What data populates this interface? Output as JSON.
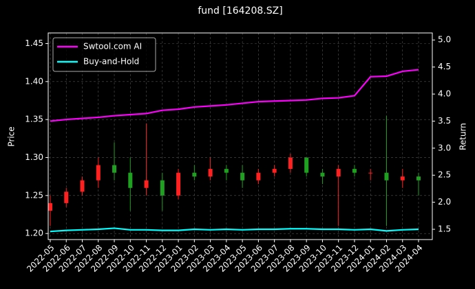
{
  "chart_data": {
    "type": "candlestick",
    "title": "fund [164208.SZ]",
    "ylabel": "Price",
    "y2label": "Return",
    "x": [
      "2022-05",
      "2022-06",
      "2022-07",
      "2022-08",
      "2022-09",
      "2022-10",
      "2022-11",
      "2022-12",
      "2023-01",
      "2023-02",
      "2023-03",
      "2023-04",
      "2023-05",
      "2023-06",
      "2023-07",
      "2023-08",
      "2023-09",
      "2023-10",
      "2023-11",
      "2023-12",
      "2024-01",
      "2024-02",
      "2024-03",
      "2024-04"
    ],
    "open": [
      1.23,
      1.24,
      1.255,
      1.27,
      1.29,
      1.28,
      1.26,
      1.27,
      1.25,
      1.28,
      1.275,
      1.285,
      1.28,
      1.27,
      1.28,
      1.285,
      1.3,
      1.28,
      1.275,
      1.285,
      1.28,
      1.28,
      1.27,
      1.275
    ],
    "high": [
      1.25,
      1.26,
      1.275,
      1.3,
      1.32,
      1.3,
      1.345,
      1.28,
      1.285,
      1.29,
      1.3,
      1.29,
      1.29,
      1.285,
      1.29,
      1.305,
      1.3,
      1.285,
      1.29,
      1.29,
      1.285,
      1.355,
      1.285,
      1.28
    ],
    "low": [
      1.21,
      1.235,
      1.25,
      1.26,
      1.27,
      1.23,
      1.25,
      1.23,
      1.245,
      1.27,
      1.27,
      1.27,
      1.26,
      1.265,
      1.275,
      1.28,
      1.275,
      1.265,
      1.21,
      1.275,
      1.27,
      1.21,
      1.26,
      1.25
    ],
    "close": [
      1.24,
      1.255,
      1.27,
      1.29,
      1.28,
      1.26,
      1.27,
      1.25,
      1.28,
      1.275,
      1.285,
      1.28,
      1.27,
      1.28,
      1.285,
      1.3,
      1.28,
      1.275,
      1.285,
      1.28,
      1.28,
      1.27,
      1.275,
      1.27
    ],
    "up_color": "#ff2020",
    "down_color": "#20a020",
    "series": [
      {
        "name": "Swtool.com AI",
        "color": "#ff00ff",
        "axis": "y2",
        "values": [
          3.5,
          3.53,
          3.55,
          3.57,
          3.6,
          3.62,
          3.64,
          3.7,
          3.72,
          3.76,
          3.78,
          3.8,
          3.83,
          3.86,
          3.87,
          3.88,
          3.89,
          3.92,
          3.93,
          3.97,
          4.32,
          4.33,
          4.42,
          4.45
        ]
      },
      {
        "name": "Buy-and-Hold",
        "color": "#00ffff",
        "axis": "y2",
        "values": [
          1.46,
          1.48,
          1.49,
          1.5,
          1.52,
          1.49,
          1.49,
          1.48,
          1.48,
          1.5,
          1.49,
          1.5,
          1.49,
          1.5,
          1.5,
          1.51,
          1.51,
          1.5,
          1.5,
          1.49,
          1.5,
          1.47,
          1.49,
          1.5
        ]
      }
    ],
    "ylim": [
      1.192,
      1.464
    ],
    "yticks": [
      {
        "value": 1.2,
        "label": "1.20"
      },
      1.25,
      {
        "value": 1.3,
        "label": "1.30"
      },
      1.35,
      {
        "value": 1.4,
        "label": "1.40"
      },
      1.45
    ],
    "y2lim": [
      1.31,
      5.13
    ],
    "y2ticks": [
      1.5,
      {
        "value": 2,
        "label": "2.0"
      },
      2.5,
      {
        "value": 3,
        "label": "3.0"
      },
      3.5,
      {
        "value": 4,
        "label": "4.0"
      },
      4.5,
      {
        "value": 5,
        "label": "5.0"
      }
    ],
    "grid": true,
    "legend": "upper left"
  }
}
